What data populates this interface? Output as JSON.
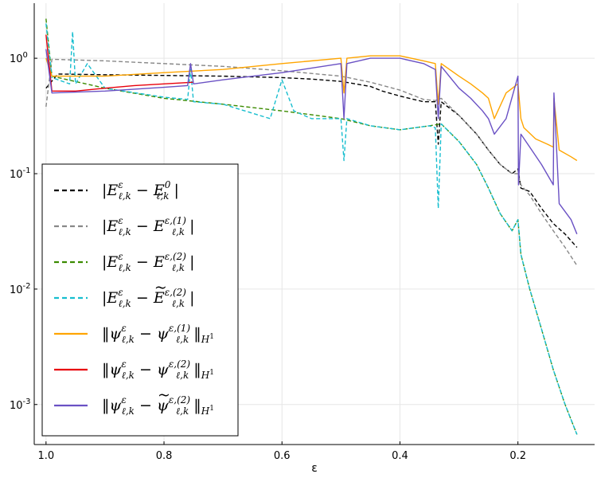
{
  "chart_data": {
    "type": "line",
    "title": "",
    "xlabel": "ε",
    "ylabel": "",
    "xlim": [
      1.02,
      0.07
    ],
    "x_reversed": true,
    "yscale": "log",
    "ylim": [
      0.00045,
      3.0
    ],
    "grid": true,
    "legend_position": "lower-left",
    "x_ticks": [
      1.0,
      0.8,
      0.6,
      0.4,
      0.2
    ],
    "x_tick_labels": [
      "1.0",
      "0.8",
      "0.6",
      "0.4",
      "0.2"
    ],
    "y_ticks": [
      1.0,
      0.1,
      0.01,
      0.001
    ],
    "y_tick_base": "10",
    "y_tick_exponents": [
      "0",
      "-1",
      "-2",
      "-3"
    ],
    "series": [
      {
        "name": "|E_{l,k}^eps - E_{l,k}^0|",
        "color": "#000000",
        "dash": "dashed",
        "legend_lhs": "E",
        "legend_lhs_sup": "ε",
        "legend_lhs_sub": "ℓ,k",
        "legend_rhs": "E",
        "legend_rhs_sup": "0",
        "legend_rhs_sub": "ℓ,k",
        "legend_rhs_tilde": false,
        "legend_norm": "abs",
        "legend_norm_sub": "",
        "x": [
          1.0,
          0.98,
          0.9,
          0.8,
          0.7,
          0.6,
          0.55,
          0.5,
          0.45,
          0.43,
          0.4,
          0.36,
          0.34,
          0.335,
          0.33,
          0.3,
          0.27,
          0.25,
          0.23,
          0.21,
          0.2,
          0.195,
          0.18,
          0.16,
          0.14,
          0.12,
          0.1
        ],
        "y": [
          0.55,
          0.73,
          0.72,
          0.71,
          0.7,
          0.68,
          0.66,
          0.63,
          0.57,
          0.52,
          0.47,
          0.42,
          0.42,
          0.18,
          0.42,
          0.32,
          0.22,
          0.16,
          0.12,
          0.1,
          0.11,
          0.075,
          0.07,
          0.05,
          0.037,
          0.03,
          0.023
        ]
      },
      {
        "name": "|E_{l,k}^eps - E_{l,k}^{eps,(1)}|",
        "color": "#888888",
        "dash": "dashed",
        "legend_lhs": "E",
        "legend_lhs_sup": "ε",
        "legend_lhs_sub": "ℓ,k",
        "legend_rhs": "E",
        "legend_rhs_sup": "ε,(1)",
        "legend_rhs_sub": "ℓ,k",
        "legend_rhs_tilde": false,
        "legend_norm": "abs",
        "legend_norm_sub": "",
        "x": [
          1.0,
          0.99,
          0.9,
          0.8,
          0.7,
          0.6,
          0.5,
          0.45,
          0.4,
          0.36,
          0.34,
          0.33,
          0.3,
          0.27,
          0.25,
          0.23,
          0.21,
          0.2,
          0.195,
          0.18,
          0.16,
          0.14,
          0.12,
          0.1
        ],
        "y": [
          0.38,
          0.98,
          0.95,
          0.9,
          0.85,
          0.78,
          0.7,
          0.62,
          0.53,
          0.44,
          0.43,
          0.45,
          0.32,
          0.22,
          0.16,
          0.12,
          0.1,
          0.1,
          0.08,
          0.065,
          0.045,
          0.032,
          0.023,
          0.016
        ]
      },
      {
        "name": "|E_{l,k}^eps - E_{l,k}^{eps,(2)}|",
        "color": "#3b8b00",
        "dash": "dashed",
        "legend_lhs": "E",
        "legend_lhs_sup": "ε",
        "legend_lhs_sub": "ℓ,k",
        "legend_rhs": "E",
        "legend_rhs_sup": "ε,(2)",
        "legend_rhs_sub": "ℓ,k",
        "legend_rhs_tilde": false,
        "legend_norm": "abs",
        "legend_norm_sub": "",
        "x": [
          1.0,
          0.99,
          0.9,
          0.8,
          0.7,
          0.6,
          0.5,
          0.45,
          0.4,
          0.35,
          0.33,
          0.3,
          0.27,
          0.25,
          0.23,
          0.21,
          0.2,
          0.195,
          0.18,
          0.16,
          0.14,
          0.12,
          0.1
        ],
        "y": [
          2.2,
          0.7,
          0.55,
          0.45,
          0.4,
          0.35,
          0.3,
          0.26,
          0.24,
          0.26,
          0.27,
          0.19,
          0.12,
          0.075,
          0.045,
          0.032,
          0.04,
          0.02,
          0.01,
          0.0045,
          0.002,
          0.001,
          0.00055
        ]
      },
      {
        "name": "|E_{l,k}^eps - tilde E_{l,k}^{eps,(2)}|",
        "color": "#17becf",
        "dash": "dashed",
        "legend_lhs": "E",
        "legend_lhs_sup": "ε",
        "legend_lhs_sub": "ℓ,k",
        "legend_rhs": "E",
        "legend_rhs_sup": "ε,(2)",
        "legend_rhs_sub": "ℓ,k",
        "legend_rhs_tilde": true,
        "legend_norm": "abs",
        "legend_norm_sub": "",
        "x": [
          1.0,
          0.99,
          0.96,
          0.955,
          0.95,
          0.93,
          0.9,
          0.8,
          0.76,
          0.755,
          0.75,
          0.7,
          0.62,
          0.6,
          0.58,
          0.55,
          0.5,
          0.495,
          0.49,
          0.45,
          0.4,
          0.35,
          0.34,
          0.335,
          0.33,
          0.3,
          0.27,
          0.25,
          0.23,
          0.21,
          0.2,
          0.195,
          0.18,
          0.16,
          0.14,
          0.12,
          0.1
        ],
        "y": [
          2.0,
          0.68,
          0.6,
          1.7,
          0.6,
          0.9,
          0.55,
          0.46,
          0.44,
          0.8,
          0.42,
          0.4,
          0.3,
          0.65,
          0.35,
          0.3,
          0.3,
          0.13,
          0.3,
          0.26,
          0.24,
          0.26,
          0.25,
          0.05,
          0.27,
          0.19,
          0.12,
          0.075,
          0.045,
          0.032,
          0.04,
          0.02,
          0.01,
          0.0045,
          0.002,
          0.001,
          0.00055
        ]
      },
      {
        "name": "||psi_{l,k}^eps - psi_{l,k}^{eps,(1)}||_{H^1}",
        "color": "#ffa500",
        "dash": "solid",
        "legend_lhs": "ψ",
        "legend_lhs_sup": "ε",
        "legend_lhs_sub": "ℓ,k",
        "legend_rhs": "ψ",
        "legend_rhs_sup": "ε,(1)",
        "legend_rhs_sub": "ℓ,k",
        "legend_rhs_tilde": false,
        "legend_norm": "H1",
        "legend_norm_sub": "H",
        "x": [
          1.0,
          0.99,
          0.9,
          0.8,
          0.7,
          0.6,
          0.5,
          0.495,
          0.49,
          0.45,
          0.4,
          0.36,
          0.34,
          0.335,
          0.33,
          0.3,
          0.28,
          0.26,
          0.25,
          0.24,
          0.22,
          0.2,
          0.195,
          0.19,
          0.17,
          0.15,
          0.14,
          0.139,
          0.13,
          0.11,
          0.1
        ],
        "y": [
          1.0,
          0.7,
          0.7,
          0.75,
          0.8,
          0.9,
          1.0,
          0.5,
          1.0,
          1.05,
          1.05,
          0.95,
          0.9,
          0.4,
          0.9,
          0.7,
          0.6,
          0.5,
          0.45,
          0.3,
          0.5,
          0.6,
          0.3,
          0.25,
          0.2,
          0.18,
          0.17,
          0.45,
          0.16,
          0.14,
          0.13
        ]
      },
      {
        "name": "||psi_{l,k}^eps - psi_{l,k}^{eps,(2)}||_{H^1}",
        "color": "#e8000b",
        "dash": "solid",
        "legend_lhs": "ψ",
        "legend_lhs_sup": "ε",
        "legend_lhs_sub": "ℓ,k",
        "legend_rhs": "ψ",
        "legend_rhs_sup": "ε,(2)",
        "legend_rhs_sub": "ℓ,k",
        "legend_rhs_tilde": false,
        "legend_norm": "H1",
        "legend_norm_sub": "H",
        "x": [
          1.0,
          0.99,
          0.95,
          0.9,
          0.85,
          0.8,
          0.75
        ],
        "y": [
          1.6,
          0.52,
          0.52,
          0.55,
          0.58,
          0.6,
          0.62
        ]
      },
      {
        "name": "||psi_{l,k}^eps - tilde psi_{l,k}^{eps,(2)}||_{H^1}",
        "color": "#6a51c4",
        "dash": "solid",
        "legend_lhs": "ψ",
        "legend_lhs_sup": "ε",
        "legend_lhs_sub": "ℓ,k",
        "legend_rhs": "ψ",
        "legend_rhs_sup": "ε,(2)",
        "legend_rhs_sub": "ℓ,k",
        "legend_rhs_tilde": true,
        "legend_norm": "H1",
        "legend_norm_sub": "H",
        "x": [
          1.0,
          0.99,
          0.9,
          0.8,
          0.76,
          0.755,
          0.75,
          0.7,
          0.6,
          0.5,
          0.495,
          0.49,
          0.45,
          0.4,
          0.36,
          0.34,
          0.335,
          0.33,
          0.3,
          0.28,
          0.26,
          0.25,
          0.24,
          0.22,
          0.2,
          0.199,
          0.195,
          0.18,
          0.16,
          0.14,
          0.139,
          0.13,
          0.11,
          0.1
        ],
        "y": [
          1.2,
          0.5,
          0.52,
          0.56,
          0.58,
          0.9,
          0.6,
          0.65,
          0.75,
          0.9,
          0.3,
          0.9,
          1.0,
          1.0,
          0.9,
          0.8,
          0.3,
          0.85,
          0.55,
          0.45,
          0.35,
          0.3,
          0.22,
          0.3,
          0.7,
          0.08,
          0.22,
          0.17,
          0.12,
          0.08,
          0.5,
          0.055,
          0.04,
          0.03
        ]
      }
    ]
  }
}
